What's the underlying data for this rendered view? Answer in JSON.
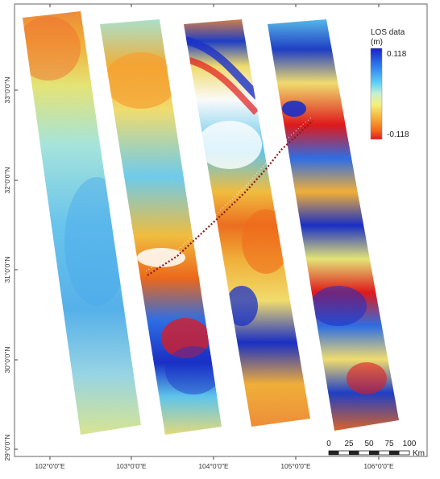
{
  "legend": {
    "title": "LOS data",
    "unit": "(m)",
    "max_label": "0.118",
    "min_label": "-0.118",
    "colors": [
      "#1a20c8",
      "#2f7ff0",
      "#5ed0f5",
      "#c8f0d0",
      "#f5f07a",
      "#f5b23a",
      "#f56a1a",
      "#e31a1c"
    ]
  },
  "axes": {
    "lat_labels": [
      "33°0'0\"N",
      "32°0'0\"N",
      "31°0'0\"N",
      "30°0'0\"N",
      "29°0'0\"N"
    ],
    "lon_labels": [
      "102°0'0\"E",
      "103°0'0\"E",
      "104°0'0\"E",
      "105°0'0\"E",
      "106°0'0\"E"
    ]
  },
  "scalebar": {
    "labels": [
      "0",
      "25",
      "50",
      "75",
      "100"
    ],
    "unit": "Km"
  },
  "fault_trace_color": "#8b1a1a"
}
